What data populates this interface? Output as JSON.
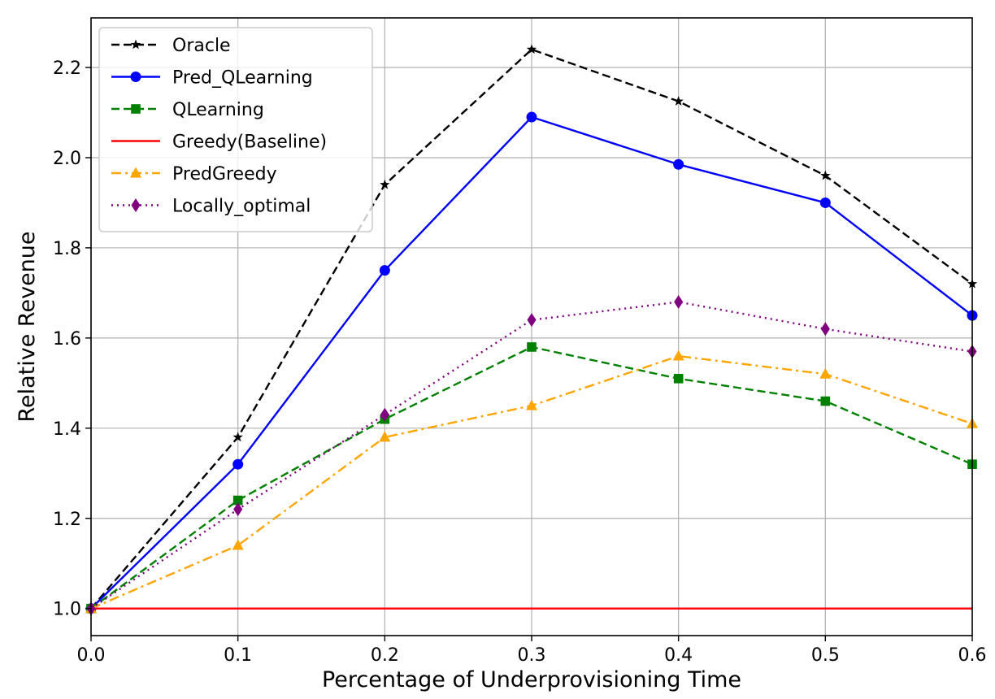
{
  "chart_data": {
    "type": "line",
    "title": "",
    "xlabel": "Percentage of Underprovisioning Time",
    "ylabel": "Relative Revenue",
    "xlim": [
      0.0,
      0.6
    ],
    "ylim": [
      0.94,
      2.31
    ],
    "xticks": [
      0.0,
      0.1,
      0.2,
      0.3,
      0.4,
      0.5,
      0.6
    ],
    "xtick_labels": [
      "0.0",
      "0.1",
      "0.2",
      "0.3",
      "0.4",
      "0.5",
      "0.6"
    ],
    "yticks": [
      1.0,
      1.2,
      1.4,
      1.6,
      1.8,
      2.0,
      2.2
    ],
    "ytick_labels": [
      "1.0",
      "1.2",
      "1.4",
      "1.6",
      "1.8",
      "2.0",
      "2.2"
    ],
    "grid": true,
    "legend_position": "top-left",
    "x": [
      0.0,
      0.1,
      0.2,
      0.3,
      0.4,
      0.5,
      0.6
    ],
    "series": [
      {
        "name": "Oracle",
        "values": [
          1.0,
          1.38,
          1.94,
          2.24,
          2.125,
          1.96,
          1.72
        ],
        "color": "#000000",
        "dash": "dashed",
        "marker": "star"
      },
      {
        "name": "Pred_QLearning",
        "values": [
          1.0,
          1.32,
          1.75,
          2.09,
          1.985,
          1.9,
          1.65
        ],
        "color": "#0000ff",
        "dash": "solid",
        "marker": "circle"
      },
      {
        "name": "QLearning",
        "values": [
          1.0,
          1.24,
          1.42,
          1.58,
          1.51,
          1.46,
          1.32
        ],
        "color": "#008000",
        "dash": "dashed",
        "marker": "square"
      },
      {
        "name": "Greedy(Baseline)",
        "values": [
          1.0,
          1.0,
          1.0,
          1.0,
          1.0,
          1.0,
          1.0
        ],
        "color": "#ff0000",
        "dash": "solid",
        "marker": "none"
      },
      {
        "name": "PredGreedy",
        "values": [
          1.0,
          1.14,
          1.38,
          1.45,
          1.56,
          1.52,
          1.41
        ],
        "color": "#ffa500",
        "dash": "dashdot",
        "marker": "triangle"
      },
      {
        "name": "Locally_optimal",
        "values": [
          1.0,
          1.22,
          1.43,
          1.64,
          1.68,
          1.62,
          1.57
        ],
        "color": "#800080",
        "dash": "dotted",
        "marker": "diamond"
      }
    ]
  }
}
